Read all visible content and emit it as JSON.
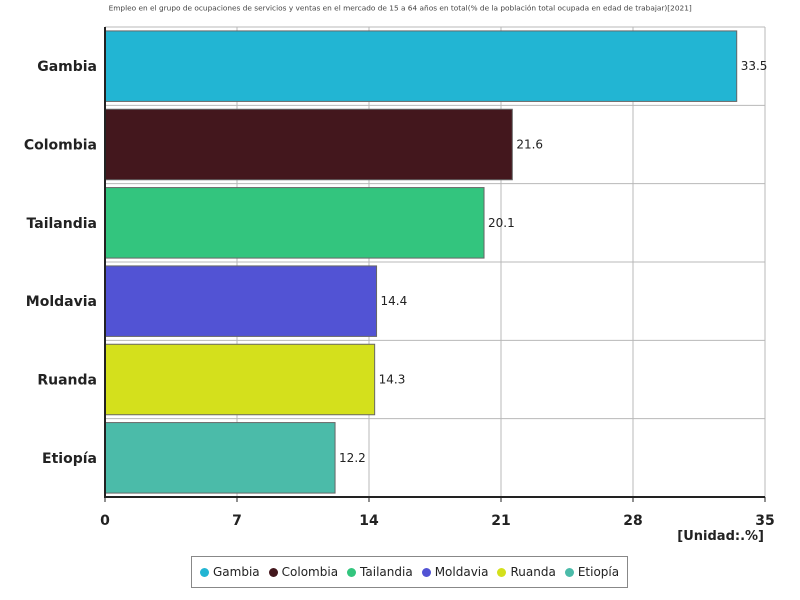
{
  "chart_data": {
    "type": "bar",
    "orientation": "horizontal",
    "title": "Empleo en el grupo de ocupaciones de servicios y ventas en el mercado de 15 a 64 años en total(% de la población total ocupada en edad de trabajar)[2021]",
    "unit_label": "[Unidad:.%]",
    "categories": [
      "Gambia",
      "Colombia",
      "Tailandia",
      "Moldavia",
      "Ruanda",
      "Etiopía"
    ],
    "values": [
      33.5,
      21.6,
      20.1,
      14.4,
      14.3,
      12.2
    ],
    "value_labels": [
      "33.5",
      "21.6",
      "20.1",
      "14.4",
      "14.3",
      "12.2"
    ],
    "colors": [
      "#22b5d3",
      "#43171d",
      "#33c57e",
      "#5253d4",
      "#d4e01c",
      "#4bbba9"
    ],
    "xlim": [
      0,
      35
    ],
    "xticks": [
      "0",
      "7",
      "14",
      "21",
      "28",
      "35"
    ],
    "grid": true,
    "legend_position": "bottom",
    "legend": [
      "Gambia",
      "Colombia",
      "Tailandia",
      "Moldavia",
      "Ruanda",
      "Etiopía"
    ]
  }
}
